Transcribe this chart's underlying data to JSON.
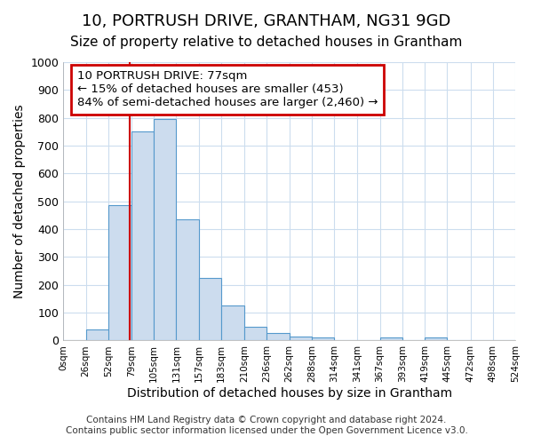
{
  "title": "10, PORTRUSH DRIVE, GRANTHAM, NG31 9GD",
  "subtitle": "Size of property relative to detached houses in Grantham",
  "xlabel": "Distribution of detached houses by size in Grantham",
  "ylabel": "Number of detached properties",
  "bar_left_edges": [
    0,
    26,
    52,
    79,
    105,
    131,
    157,
    183,
    210,
    236,
    262,
    288,
    314,
    341,
    367,
    393,
    419,
    445,
    472,
    498
  ],
  "bar_heights": [
    0,
    40,
    485,
    750,
    795,
    435,
    225,
    125,
    50,
    27,
    15,
    10,
    0,
    0,
    10,
    0,
    10,
    0,
    0,
    0
  ],
  "bar_widths": [
    26,
    27,
    27,
    26,
    26,
    26,
    26,
    27,
    26,
    26,
    26,
    26,
    27,
    26,
    26,
    26,
    26,
    27,
    26,
    26
  ],
  "bar_color": "#ccdcee",
  "bar_edge_color": "#5599cc",
  "ylim": [
    0,
    1000
  ],
  "yticks": [
    0,
    100,
    200,
    300,
    400,
    500,
    600,
    700,
    800,
    900,
    1000
  ],
  "xtick_labels": [
    "0sqm",
    "26sqm",
    "52sqm",
    "79sqm",
    "105sqm",
    "131sqm",
    "157sqm",
    "183sqm",
    "210sqm",
    "236sqm",
    "262sqm",
    "288sqm",
    "314sqm",
    "341sqm",
    "367sqm",
    "393sqm",
    "419sqm",
    "445sqm",
    "472sqm",
    "498sqm",
    "524sqm"
  ],
  "xtick_positions": [
    0,
    26,
    52,
    79,
    105,
    131,
    157,
    183,
    210,
    236,
    262,
    288,
    314,
    341,
    367,
    393,
    419,
    445,
    472,
    498,
    524
  ],
  "red_line_x": 77,
  "annotation_line1": "10 PORTRUSH DRIVE: 77sqm",
  "annotation_line2": "← 15% of detached houses are smaller (453)",
  "annotation_line3": "84% of semi-detached houses are larger (2,460) →",
  "annotation_box_color": "#ffffff",
  "annotation_box_edge_color": "#cc0000",
  "grid_color": "#ccddee",
  "background_color": "#ffffff",
  "plot_bg_color": "#ffffff",
  "footer_line1": "Contains HM Land Registry data © Crown copyright and database right 2024.",
  "footer_line2": "Contains public sector information licensed under the Open Government Licence v3.0.",
  "title_fontsize": 13,
  "subtitle_fontsize": 11,
  "xlabel_fontsize": 10,
  "ylabel_fontsize": 10,
  "annotation_fontsize": 9.5,
  "footer_fontsize": 7.5,
  "xlim_max": 524
}
